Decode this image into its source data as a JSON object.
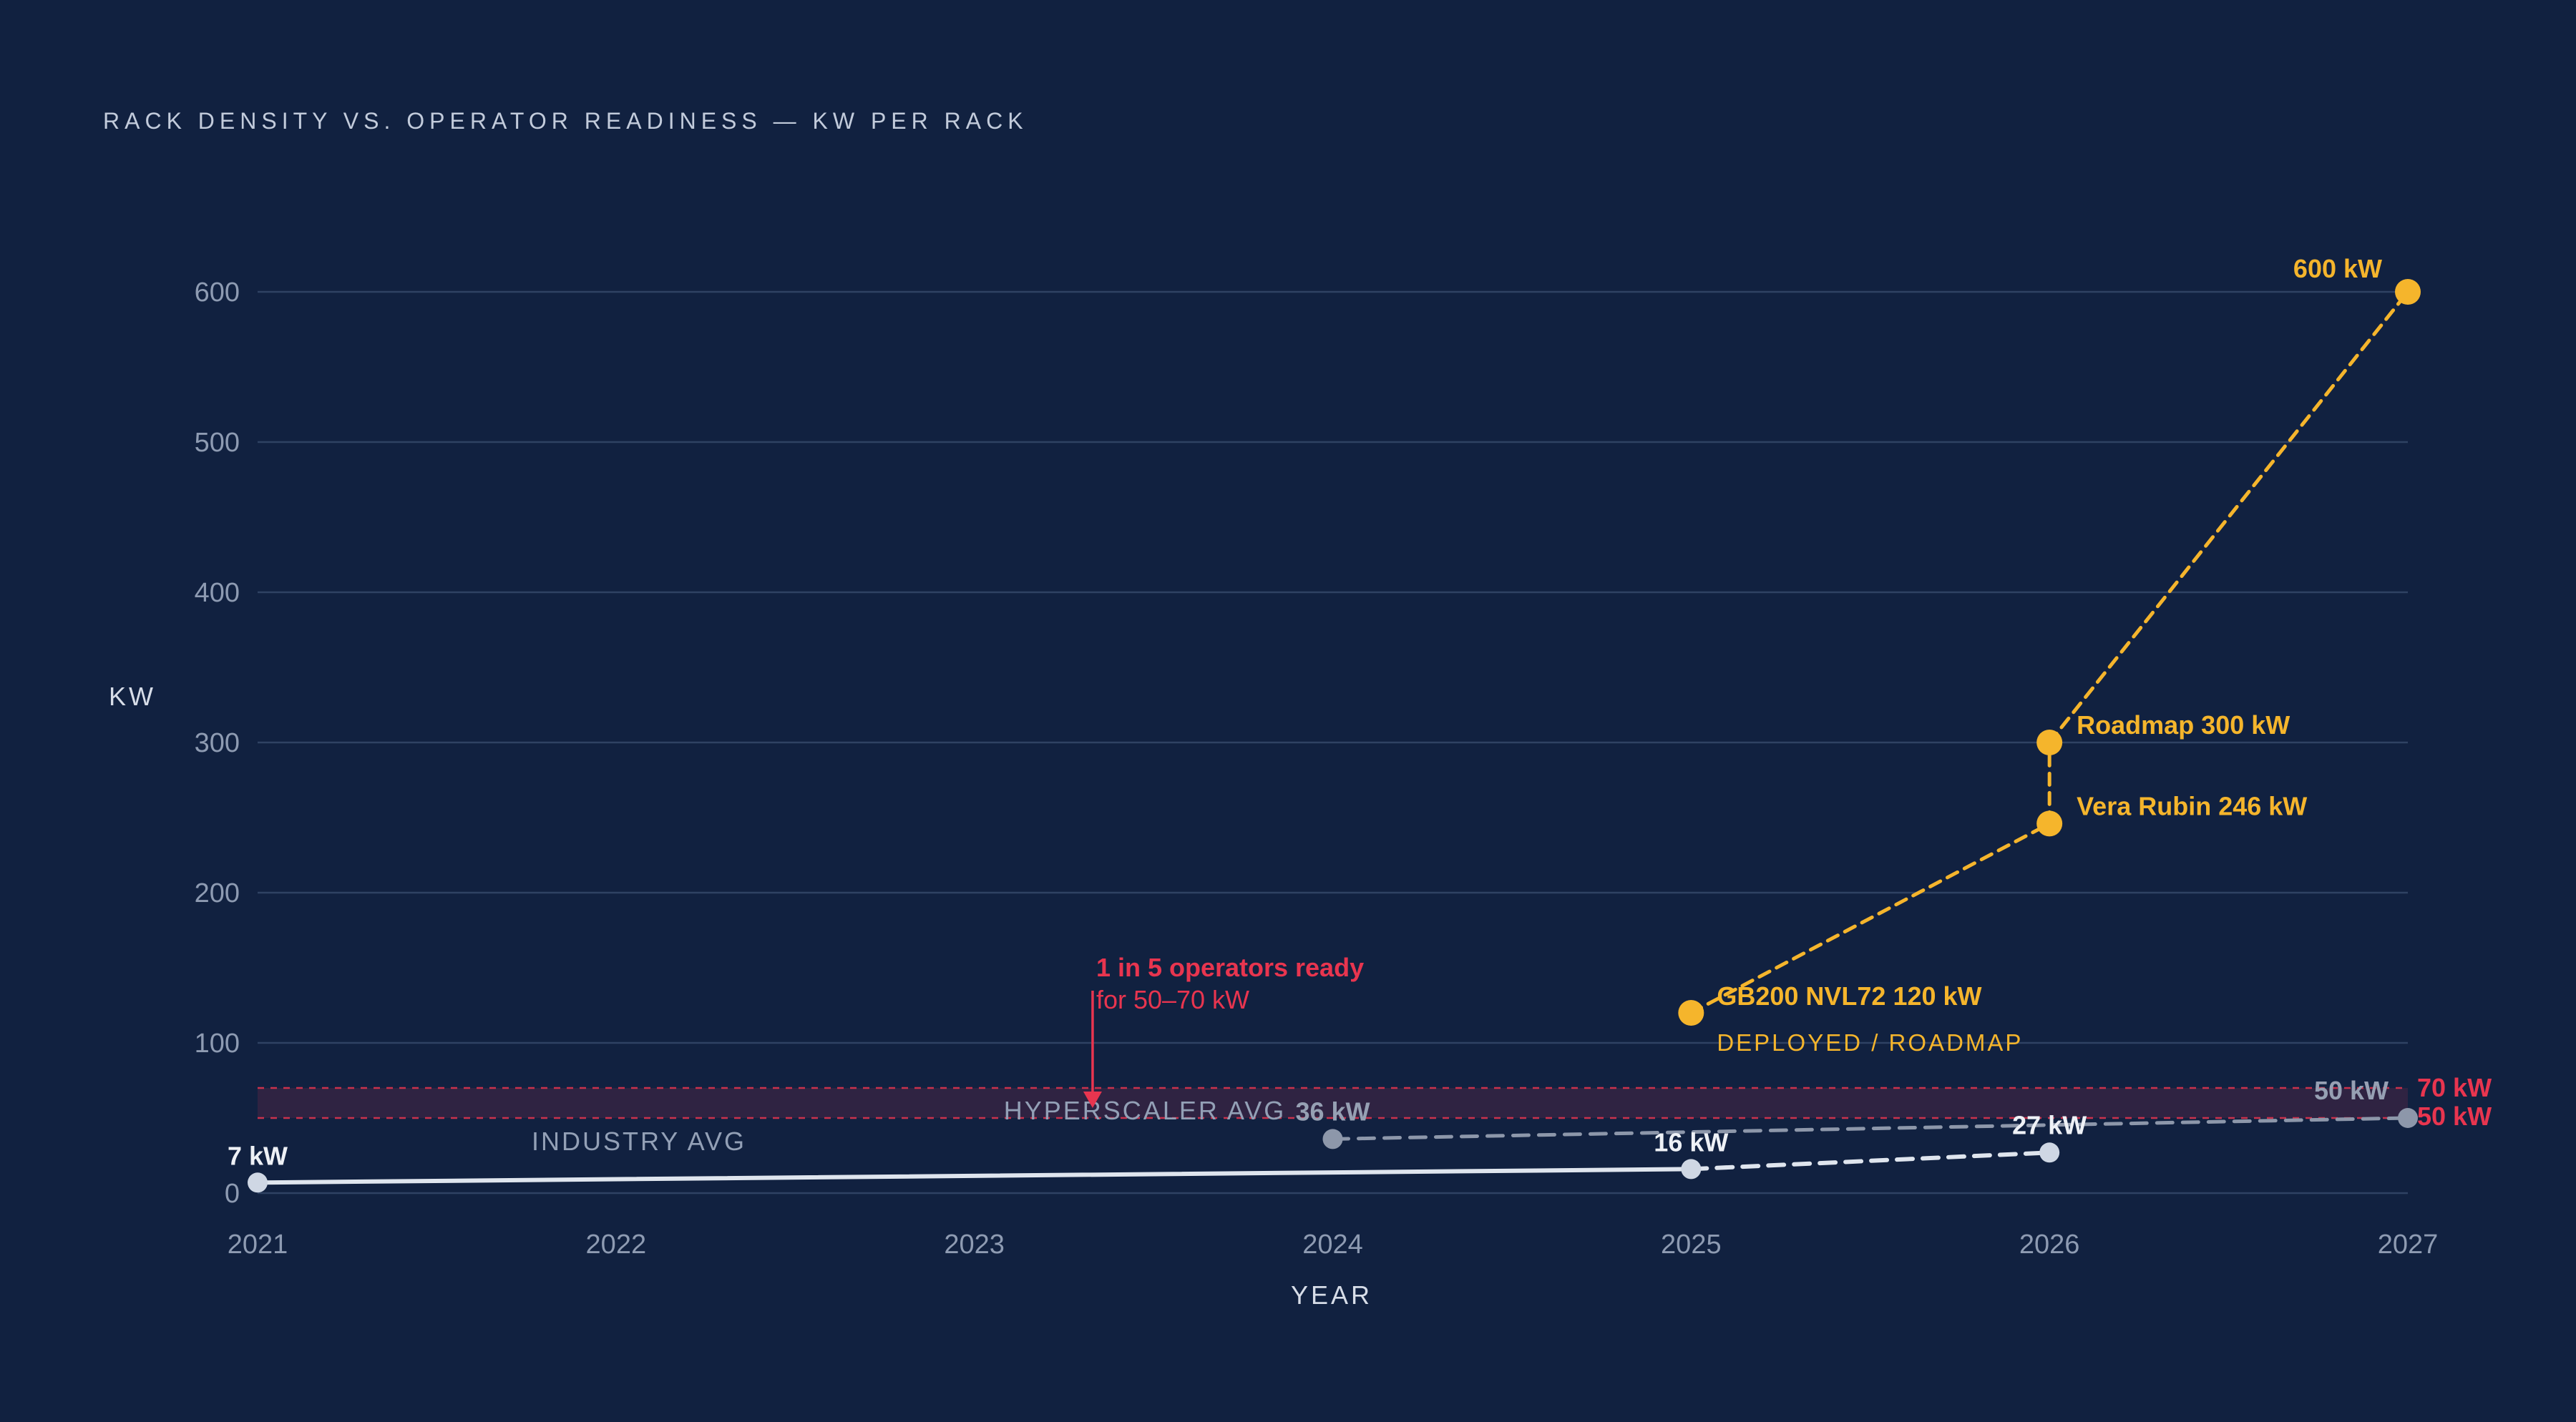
{
  "chart_data": {
    "type": "line",
    "title": "RACK DENSITY VS. OPERATOR READINESS — KW PER RACK",
    "xlabel": "YEAR",
    "ylabel": "KW",
    "xlim": [
      2021,
      2027
    ],
    "ylim": [
      0,
      600
    ],
    "xticks": [
      "2021",
      "2022",
      "2023",
      "2024",
      "2025",
      "2026",
      "2027"
    ],
    "yticks": [
      "0",
      "100",
      "200",
      "300",
      "400",
      "500",
      "600"
    ],
    "grid": true,
    "band": {
      "low": 50,
      "high": 70,
      "label_low": "50 kW",
      "label_high": "70 kW"
    },
    "series": [
      {
        "style": "industry",
        "color": "#dfe5ee",
        "points": [
          {
            "x": 2021,
            "y": 7,
            "label": "7 kW",
            "dashed": false
          },
          {
            "x": 2025,
            "y": 16,
            "label": "16 kW",
            "dashed": false
          },
          {
            "x": 2026,
            "y": 27,
            "label": "27 kW",
            "dashed": true
          }
        ]
      },
      {
        "style": "hyperscaler",
        "color": "#8d97aa",
        "points": [
          {
            "x": 2024,
            "y": 36,
            "label": "36 kW",
            "dashed": true
          },
          {
            "x": 2027,
            "y": 50,
            "label": "50 kW",
            "dashed": true
          }
        ]
      },
      {
        "style": "gpu",
        "color": "#f5b52c",
        "points": [
          {
            "x": 2025,
            "y": 120,
            "label": "GB200 NVL72 120 kW",
            "dashed": true
          },
          {
            "x": 2026,
            "y": 246,
            "label": "Vera Rubin 246 kW",
            "dashed": true
          },
          {
            "x": 2026,
            "y": 300,
            "label": "Roadmap 300 kW",
            "dashed": true
          },
          {
            "x": 2027,
            "y": 600,
            "label": "600 kW",
            "dashed": true
          }
        ]
      }
    ],
    "annotations": {
      "industry_avg": "INDUSTRY AVG",
      "hyperscaler_avg": "HYPERSCALER AVG",
      "gpu_sub": "DEPLOYED / ROADMAP",
      "readiness_title": "1 in 5 operators ready",
      "readiness_sub": "for 50–70 kW",
      "readiness_x": 2023.33,
      "readiness_y": 60
    }
  }
}
